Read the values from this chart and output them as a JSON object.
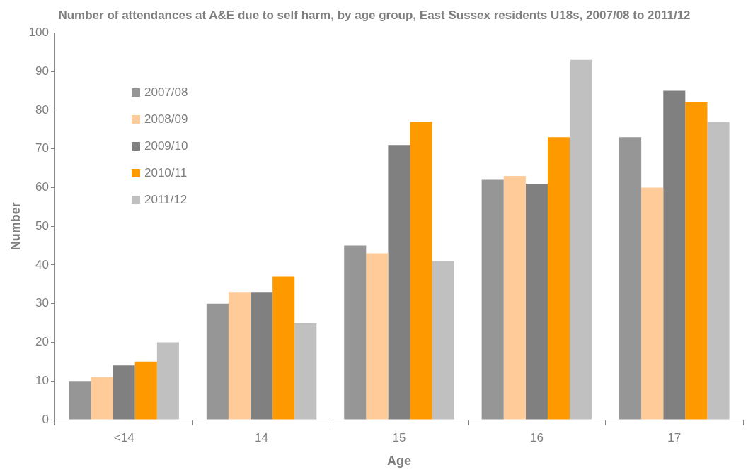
{
  "chart_data": {
    "type": "bar",
    "title": "Number of attendances at A&E due to self harm, by age group, East Sussex residents U18s, 2007/08 to 2011/12",
    "xlabel": "Age",
    "ylabel": "Number",
    "categories": [
      "<14",
      "14",
      "15",
      "16",
      "17"
    ],
    "series": [
      {
        "name": "2007/08",
        "color": "#969696",
        "values": [
          10,
          30,
          45,
          62,
          73
        ]
      },
      {
        "name": "2008/09",
        "color": "#ffcc99",
        "values": [
          11,
          33,
          43,
          63,
          60
        ]
      },
      {
        "name": "2009/10",
        "color": "#808080",
        "values": [
          14,
          33,
          71,
          61,
          85
        ]
      },
      {
        "name": "2010/11",
        "color": "#ff9900",
        "values": [
          15,
          37,
          77,
          73,
          82
        ]
      },
      {
        "name": "2011/12",
        "color": "#c0c0c0",
        "values": [
          20,
          25,
          41,
          93,
          77
        ]
      }
    ],
    "ylim": [
      0,
      100
    ],
    "yticks": [
      0,
      10,
      20,
      30,
      40,
      50,
      60,
      70,
      80,
      90,
      100
    ],
    "grid": false,
    "legend": "top left"
  }
}
